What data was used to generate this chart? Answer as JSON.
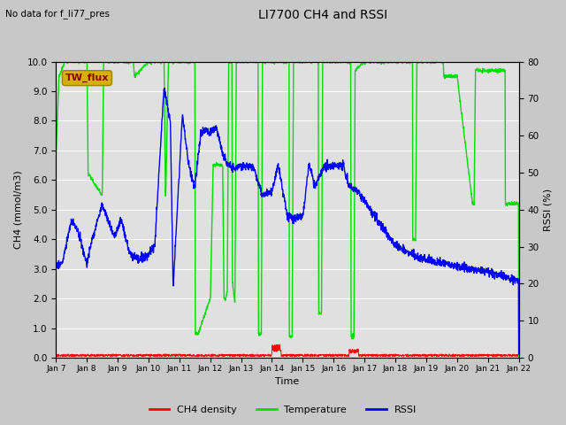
{
  "title": "LI7700 CH4 and RSSI",
  "top_left_text": "No data for f_li77_pres",
  "xlabel": "Time",
  "ylabel_left": "CH4 (mmol/m3)",
  "ylabel_right": "RSSI (%)",
  "ylim_left": [
    0.0,
    10.0
  ],
  "ylim_right": [
    0,
    80
  ],
  "yticks_left": [
    0.0,
    1.0,
    2.0,
    3.0,
    4.0,
    5.0,
    6.0,
    7.0,
    8.0,
    9.0,
    10.0
  ],
  "yticks_right": [
    0,
    10,
    20,
    30,
    40,
    50,
    60,
    70,
    80
  ],
  "xtick_labels": [
    "Jan 7",
    "Jan 8",
    "Jan 9",
    "Jan 10",
    "Jan 11",
    "Jan 12",
    "Jan 13",
    "Jan 14",
    "Jan 15",
    "Jan 16",
    "Jan 17",
    "Jan 18",
    "Jan 19",
    "Jan 20",
    "Jan 21",
    "Jan 22"
  ],
  "legend_label": "TW_flux",
  "legend_box_color": "#d4b000",
  "legend_text_color": "#8b0000",
  "fig_bg_color": "#c8c8c8",
  "plot_bg_color": "#e0e0e0",
  "grid_color": "white",
  "line_ch4_color": "red",
  "line_temp_color": "#00dd00",
  "line_rssi_color": "blue",
  "num_points": 2000
}
